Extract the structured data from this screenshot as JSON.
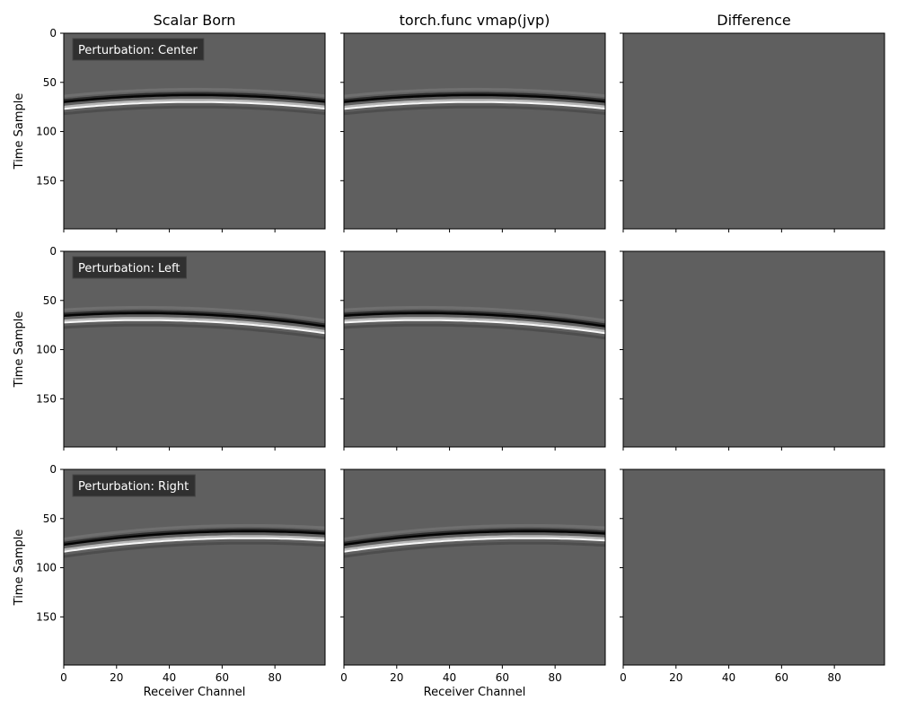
{
  "chart_data": {
    "type": "heatmap",
    "layout": "3x3 grid of seismogram panels, grayscale colormap",
    "columns": [
      {
        "title": "Scalar Born"
      },
      {
        "title": "torch.func vmap(jvp)"
      },
      {
        "title": "Difference"
      }
    ],
    "rows": [
      {
        "annotation": "Perturbation: Center",
        "apex_receiver": 50,
        "apex_time": 63,
        "moveout": 0.0028
      },
      {
        "annotation": "Perturbation: Left",
        "apex_receiver": 30,
        "apex_time": 63,
        "moveout": 0.0028
      },
      {
        "annotation": "Perturbation: Right",
        "apex_receiver": 70,
        "apex_time": 63,
        "moveout": 0.0028
      }
    ],
    "xlabel": "Receiver Channel",
    "ylabel": "Time Sample",
    "xlim": [
      0,
      99
    ],
    "ylim": [
      199,
      0
    ],
    "xticks": [
      0,
      20,
      40,
      60,
      80
    ],
    "yticks": [
      0,
      50,
      100,
      150
    ],
    "difference_values": "all zero",
    "background_gray": "#5f5f5f",
    "wavelet_dark": "#000000",
    "wavelet_bright": "#ffffff"
  }
}
